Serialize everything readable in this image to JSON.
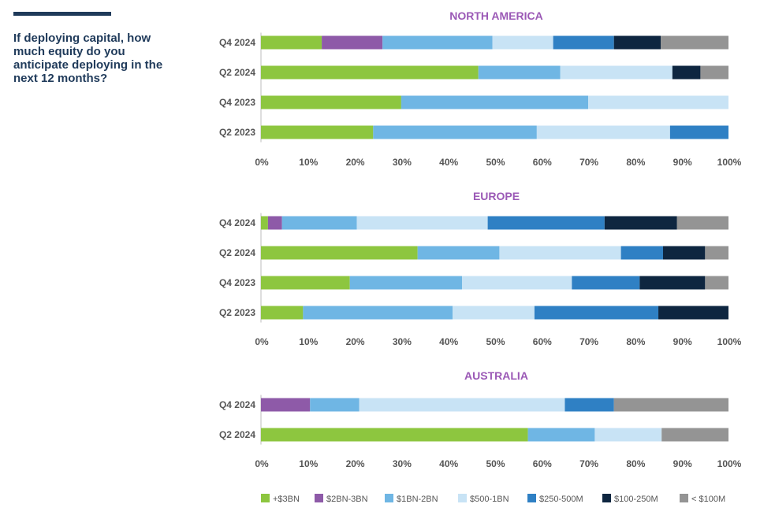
{
  "question": "If deploying capital, how much equity do you anticipate deploying in the next 12 months?",
  "title_color": "#9b59b6",
  "chart_data": {
    "type": "bar",
    "orientation": "horizontal",
    "stacked": true,
    "series_names": [
      "+$3BN",
      "$2BN-3BN",
      "$1BN-2BN",
      "$500-1BN",
      "$250-500M",
      "$100-250M",
      "< $100M"
    ],
    "series_colors": [
      "#8dc63f",
      "#8e5aa8",
      "#6fb6e4",
      "#c8e3f5",
      "#2f80c4",
      "#0e2640",
      "#949494"
    ],
    "xlim": [
      0,
      100
    ],
    "x_ticks": [
      "0%",
      "10%",
      "20%",
      "30%",
      "40%",
      "50%",
      "60%",
      "70%",
      "80%",
      "90%",
      "100%"
    ],
    "panels": [
      {
        "title": "NORTH AMERICA",
        "categories": [
          "Q4 2024",
          "Q2 2024",
          "Q4 2023",
          "Q2 2023"
        ],
        "values": [
          [
            13,
            13,
            23.5,
            13,
            13,
            10,
            14.5
          ],
          [
            46.5,
            0,
            17.5,
            24,
            0,
            6,
            6
          ],
          [
            30,
            0,
            40,
            30,
            0,
            0,
            0
          ],
          [
            24,
            0,
            35,
            28.5,
            12.5,
            0,
            0
          ]
        ]
      },
      {
        "title": "EUROPE",
        "categories": [
          "Q4 2024",
          "Q2 2024",
          "Q4 2023",
          "Q2 2023"
        ],
        "values": [
          [
            1.5,
            3,
            16,
            28,
            25,
            15.5,
            11
          ],
          [
            33.5,
            0,
            17.5,
            26,
            9,
            9,
            5
          ],
          [
            19,
            0,
            24,
            23.5,
            14.5,
            14,
            5
          ],
          [
            9,
            0,
            32,
            17.5,
            26.5,
            15,
            0
          ]
        ]
      },
      {
        "title": "AUSTRALIA",
        "categories": [
          "Q4 2024",
          "Q2 2024"
        ],
        "values": [
          [
            0,
            10.5,
            10.5,
            44,
            10.5,
            0,
            24.5
          ],
          [
            57.1,
            0,
            14.3,
            14.3,
            0,
            0,
            14.3
          ]
        ]
      }
    ]
  }
}
